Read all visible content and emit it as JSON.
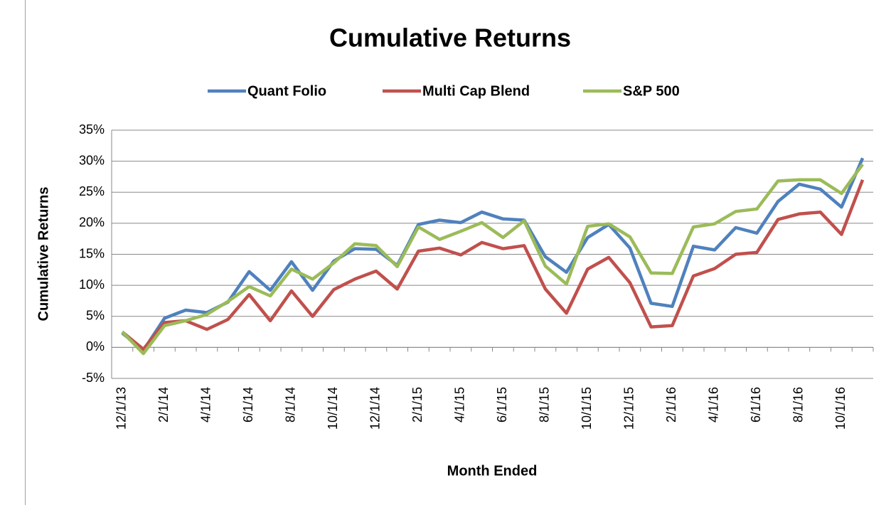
{
  "chart_data": {
    "type": "line",
    "title": "Cumulative Returns",
    "x_label": "Month Ended",
    "y_label": "Cumulative Returns",
    "categories": [
      "12/1/13",
      null,
      "2/1/14",
      null,
      "4/1/14",
      null,
      "6/1/14",
      null,
      "8/1/14",
      null,
      "10/1/14",
      null,
      "12/1/14",
      null,
      "2/1/15",
      null,
      "4/1/15",
      null,
      "6/1/15",
      null,
      "8/1/15",
      null,
      "10/1/15",
      null,
      "12/1/15",
      null,
      "2/1/16",
      null,
      "4/1/16",
      null,
      "6/1/16",
      null,
      "8/1/16",
      null,
      "10/1/16",
      null
    ],
    "series": [
      {
        "name": "Quant Folio",
        "color": "#4f81bd",
        "values": [
          2.3,
          -0.5,
          4.7,
          6.0,
          5.6,
          7.3,
          12.2,
          9.2,
          13.8,
          9.2,
          13.9,
          15.9,
          15.8,
          13.2,
          19.8,
          20.5,
          20.1,
          21.8,
          20.7,
          20.5,
          14.6,
          12.1,
          17.7,
          19.8,
          16.0,
          7.1,
          6.6,
          16.3,
          15.7,
          19.3,
          18.4,
          23.5,
          26.3,
          25.5,
          22.6,
          30.5
        ]
      },
      {
        "name": "Multi Cap Blend",
        "color": "#c0504d",
        "values": [
          2.5,
          -0.3,
          4.0,
          4.3,
          2.9,
          4.5,
          8.5,
          4.3,
          9.1,
          5.0,
          9.3,
          11.0,
          12.3,
          9.4,
          15.5,
          16.0,
          14.9,
          16.9,
          15.9,
          16.4,
          9.4,
          5.5,
          12.6,
          14.5,
          10.4,
          3.3,
          3.5,
          11.5,
          12.7,
          15.0,
          15.3,
          20.6,
          21.5,
          21.8,
          18.2,
          27.0
        ]
      },
      {
        "name": "S&P 500",
        "color": "#9bbb59",
        "values": [
          2.5,
          -1.0,
          3.5,
          4.3,
          5.3,
          7.4,
          9.8,
          8.3,
          12.6,
          11.0,
          13.6,
          16.7,
          16.4,
          13.0,
          19.4,
          17.4,
          18.7,
          20.1,
          17.7,
          20.4,
          13.1,
          10.2,
          19.5,
          19.9,
          17.8,
          12.0,
          11.9,
          19.4,
          19.9,
          21.9,
          22.3,
          26.8,
          27.0,
          27.0,
          24.8,
          29.5
        ]
      }
    ],
    "ylim": [
      -5,
      35
    ],
    "yticks": [
      {
        "value": -5,
        "label": "-5%"
      },
      {
        "value": 0,
        "label": "0%"
      },
      {
        "value": 5,
        "label": "5%"
      },
      {
        "value": 10,
        "label": "10%"
      },
      {
        "value": 15,
        "label": "15%"
      },
      {
        "value": 20,
        "label": "20%"
      },
      {
        "value": 25,
        "label": "25%"
      },
      {
        "value": 30,
        "label": "30%"
      },
      {
        "value": 35,
        "label": "35%"
      }
    ],
    "grid": true,
    "legend": "top"
  }
}
